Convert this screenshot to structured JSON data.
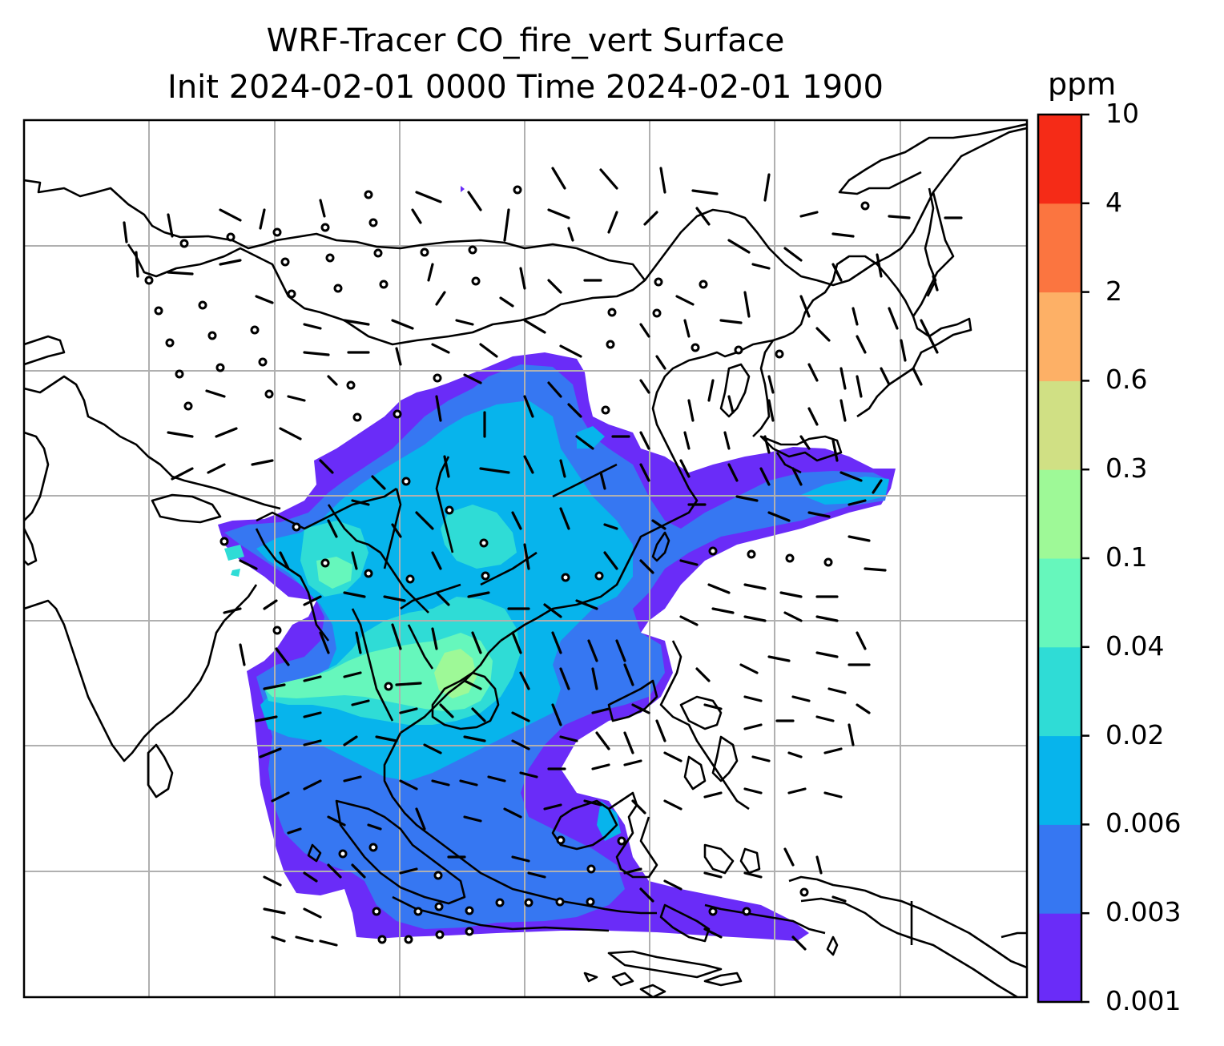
{
  "title": {
    "line1": "WRF-Tracer CO_fire_vert Surface",
    "line2": "Init 2024-02-01 0000 Time 2024-02-01 1900"
  },
  "colorbar": {
    "units": "ppm",
    "ticks": [
      "0.001",
      "0.003",
      "0.006",
      "0.02",
      "0.04",
      "0.1",
      "0.3",
      "0.6",
      "2",
      "4",
      "10"
    ],
    "colors": [
      "#6a2cf8",
      "#3677f2",
      "#07b4ec",
      "#2fdcd6",
      "#66f7bc",
      "#9ef997",
      "#d0e084",
      "#fdb066",
      "#fb7540",
      "#f52b17"
    ]
  },
  "map": {
    "field_name": "CO_fire_vert",
    "level": "Surface",
    "gridlines": true,
    "overlays": [
      "coastlines",
      "country-borders",
      "wind-barbs"
    ]
  }
}
